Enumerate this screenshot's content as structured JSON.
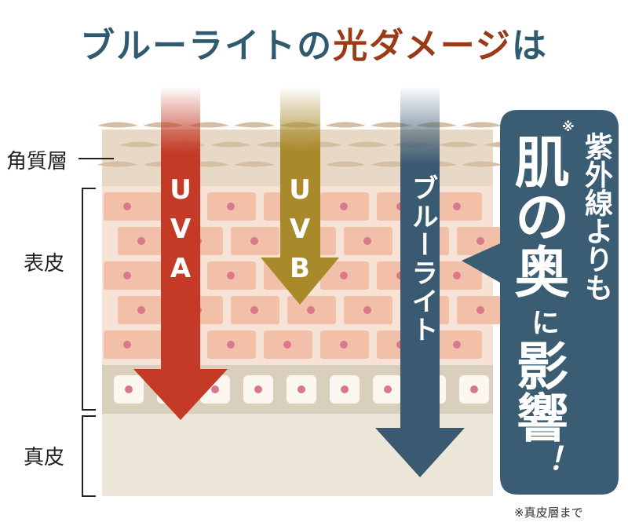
{
  "title": {
    "part1": "ブルーライトの",
    "part2": "光ダメージ",
    "part3": "は"
  },
  "layers": [
    "角質層",
    "表皮",
    "真皮"
  ],
  "arrows": [
    "UVA",
    "UVB",
    "ブルーライト"
  ],
  "callout": {
    "mark": "※",
    "line1": "紫外線よりも",
    "line2": "肌の奥",
    "line3": "に",
    "line4": "影響",
    "line5": "！"
  },
  "footnote": "※真皮層まで"
}
